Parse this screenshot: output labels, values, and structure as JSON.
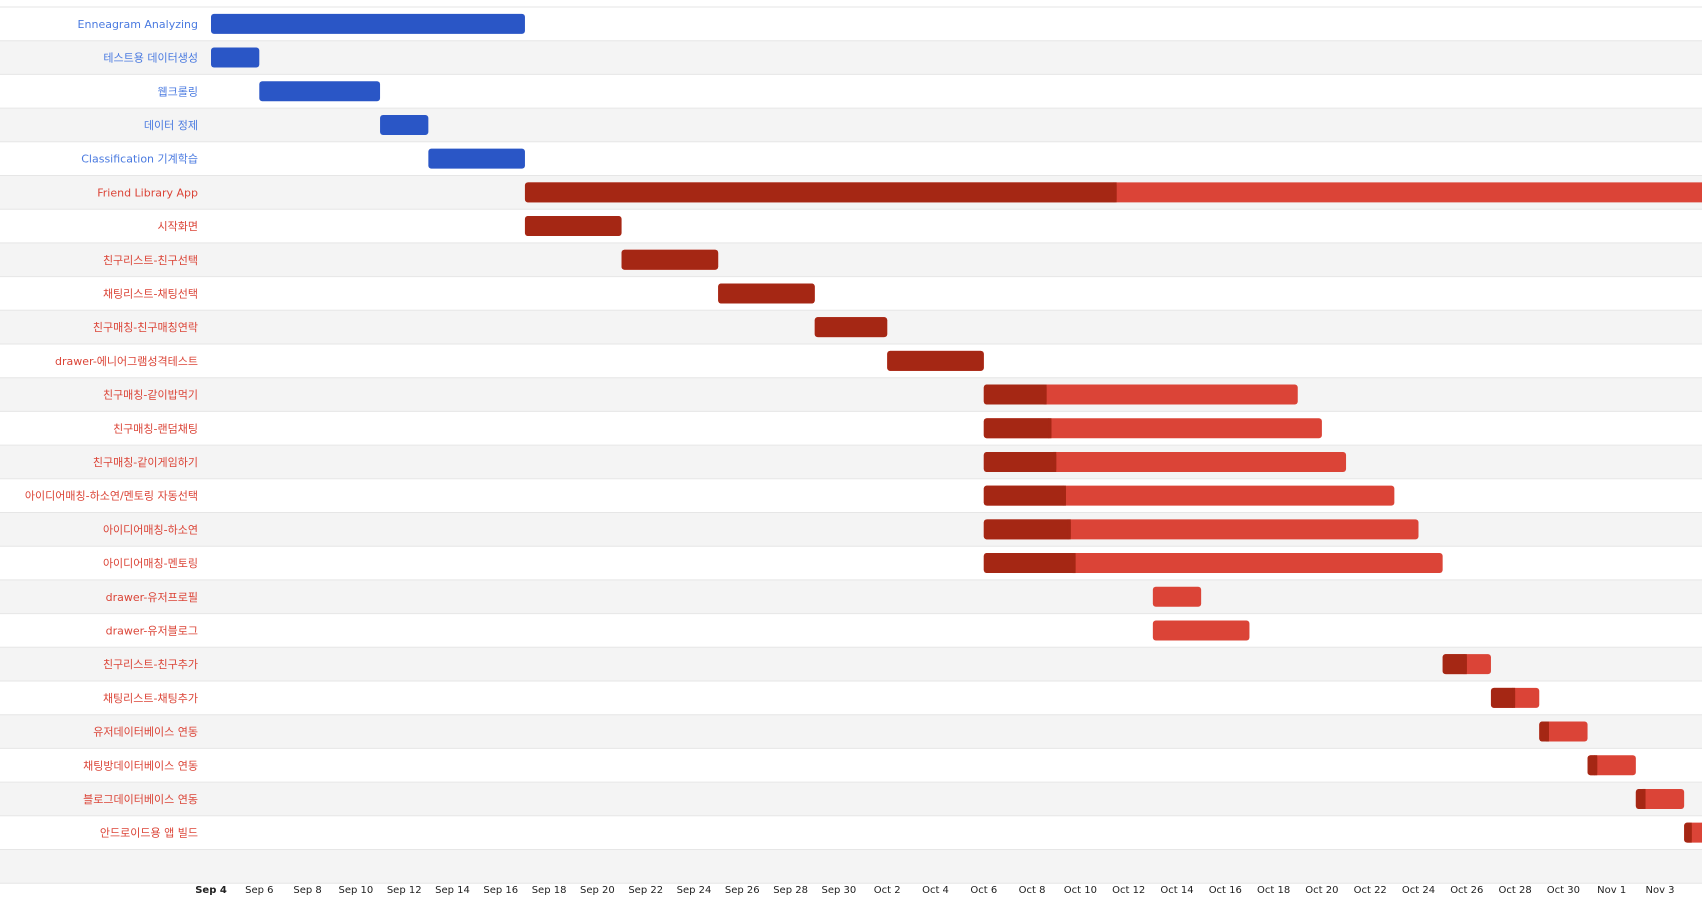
{
  "colors": {
    "group_blue": "#2a56c6",
    "label_blue": "#4a7ae0",
    "done_red": "#a52714",
    "remaining_red": "#db4437",
    "label_red": "#db4437",
    "row_alt": "#f4f4f4",
    "row_line": "#e6e6e6"
  },
  "chart_data": {
    "type": "gantt",
    "x_start": "2021-09-04",
    "x_end": "2021-11-04",
    "tick_labels": [
      "Sep 4",
      "Sep 6",
      "Sep 8",
      "Sep 10",
      "Sep 12",
      "Sep 14",
      "Sep 16",
      "Sep 18",
      "Sep 20",
      "Sep 22",
      "Sep 24",
      "Sep 26",
      "Sep 28",
      "Sep 30",
      "Oct 2",
      "Oct 4",
      "Oct 6",
      "Oct 8",
      "Oct 10",
      "Oct 12",
      "Oct 14",
      "Oct 16",
      "Oct 18",
      "Oct 20",
      "Oct 22",
      "Oct 24",
      "Oct 26",
      "Oct 28",
      "Oct 30",
      "Nov 1",
      "Nov 3"
    ],
    "tick_dates": [
      "2021-09-04",
      "2021-09-06",
      "2021-09-08",
      "2021-09-10",
      "2021-09-12",
      "2021-09-14",
      "2021-09-16",
      "2021-09-18",
      "2021-09-20",
      "2021-09-22",
      "2021-09-24",
      "2021-09-26",
      "2021-09-28",
      "2021-09-30",
      "2021-10-02",
      "2021-10-04",
      "2021-10-06",
      "2021-10-08",
      "2021-10-10",
      "2021-10-12",
      "2021-10-14",
      "2021-10-16",
      "2021-10-18",
      "2021-10-20",
      "2021-10-22",
      "2021-10-24",
      "2021-10-26",
      "2021-10-28",
      "2021-10-30",
      "2021-11-01",
      "2021-11-03"
    ],
    "tasks": [
      {
        "name": "Enneagram Analyzing",
        "group": "blue",
        "start": "2021-09-04",
        "end": "2021-09-17",
        "percent": 100
      },
      {
        "name": "테스트용 데이터생성",
        "group": "blue",
        "start": "2021-09-04",
        "end": "2021-09-06",
        "percent": 100
      },
      {
        "name": "웹크롤링",
        "group": "blue",
        "start": "2021-09-06",
        "end": "2021-09-11",
        "percent": 100
      },
      {
        "name": "데이터 정제",
        "group": "blue",
        "start": "2021-09-11",
        "end": "2021-09-13",
        "percent": 100
      },
      {
        "name": "Classification 기계학습",
        "group": "blue",
        "start": "2021-09-13",
        "end": "2021-09-17",
        "percent": 100
      },
      {
        "name": "Friend Library App",
        "group": "red",
        "start": "2021-09-17",
        "end": "2021-11-05",
        "percent": 50
      },
      {
        "name": "시작화면",
        "group": "red",
        "start": "2021-09-17",
        "end": "2021-09-21",
        "percent": 100
      },
      {
        "name": "친구리스트-친구선택",
        "group": "red",
        "start": "2021-09-21",
        "end": "2021-09-25",
        "percent": 100
      },
      {
        "name": "채팅리스트-채팅선택",
        "group": "red",
        "start": "2021-09-25",
        "end": "2021-09-29",
        "percent": 100
      },
      {
        "name": "친구매칭-친구매칭연락",
        "group": "red",
        "start": "2021-09-29",
        "end": "2021-10-02",
        "percent": 100
      },
      {
        "name": "drawer-에니어그램성격테스트",
        "group": "red",
        "start": "2021-10-02",
        "end": "2021-10-06",
        "percent": 100
      },
      {
        "name": "친구매칭-같이밥먹기",
        "group": "red",
        "start": "2021-10-06",
        "end": "2021-10-19",
        "percent": 20
      },
      {
        "name": "친구매칭-랜덤채팅",
        "group": "red",
        "start": "2021-10-06",
        "end": "2021-10-20",
        "percent": 20
      },
      {
        "name": "친구매칭-같이게임하기",
        "group": "red",
        "start": "2021-10-06",
        "end": "2021-10-21",
        "percent": 20
      },
      {
        "name": "아이디어매칭-하소연/멘토링 자동선택",
        "group": "red",
        "start": "2021-10-06",
        "end": "2021-10-23",
        "percent": 20
      },
      {
        "name": "아이디어매칭-하소연",
        "group": "red",
        "start": "2021-10-06",
        "end": "2021-10-24",
        "percent": 20
      },
      {
        "name": "아이디어매칭-멘토링",
        "group": "red",
        "start": "2021-10-06",
        "end": "2021-10-25",
        "percent": 20
      },
      {
        "name": "drawer-유저프로필",
        "group": "red",
        "start": "2021-10-13",
        "end": "2021-10-15",
        "percent": 0
      },
      {
        "name": "drawer-유저블로그",
        "group": "red",
        "start": "2021-10-13",
        "end": "2021-10-17",
        "percent": 0
      },
      {
        "name": "친구리스트-친구추가",
        "group": "red",
        "start": "2021-10-25",
        "end": "2021-10-27",
        "percent": 50
      },
      {
        "name": "채팅리스트-채팅추가",
        "group": "red",
        "start": "2021-10-27",
        "end": "2021-10-29",
        "percent": 50
      },
      {
        "name": "유저데이터베이스 연동",
        "group": "red",
        "start": "2021-10-29",
        "end": "2021-10-31",
        "percent": 20
      },
      {
        "name": "채팅방데이터베이스 연동",
        "group": "red",
        "start": "2021-10-31",
        "end": "2021-11-02",
        "percent": 20
      },
      {
        "name": "블로그데이터베이스 연동",
        "group": "red",
        "start": "2021-11-02",
        "end": "2021-11-04",
        "percent": 20
      },
      {
        "name": "안드로이드용 앱 빌드",
        "group": "red",
        "start": "2021-11-04",
        "end": "2021-11-06",
        "percent": 20
      }
    ]
  }
}
